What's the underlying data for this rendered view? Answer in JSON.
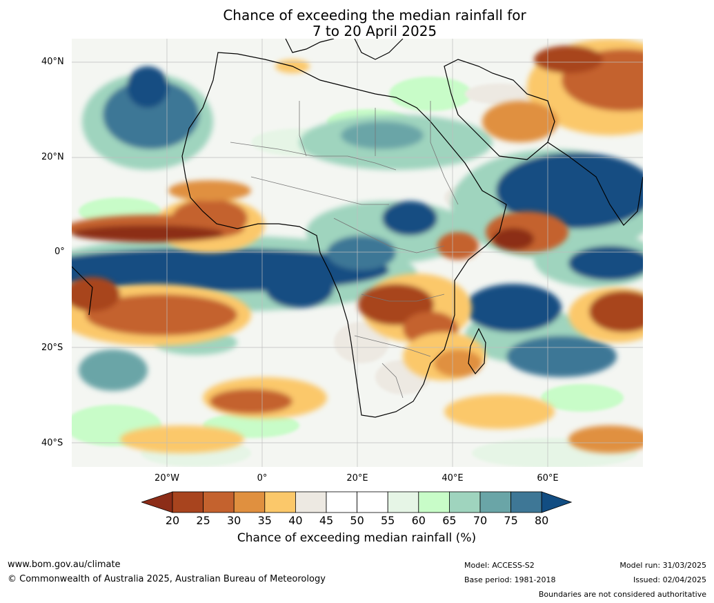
{
  "title": {
    "line1": "Chance of exceeding the median rainfall for",
    "line2": "7 to 20 April 2025"
  },
  "map": {
    "lat_labels": [
      "40°N",
      "20°N",
      "0°",
      "20°S",
      "40°S"
    ],
    "lon_labels": [
      "20°W",
      "0°",
      "20°E",
      "40°E",
      "60°E"
    ]
  },
  "colorbar": {
    "ticks": [
      "20",
      "25",
      "30",
      "35",
      "40",
      "45",
      "50",
      "55",
      "60",
      "65",
      "70",
      "75",
      "80"
    ],
    "colors": [
      "#8c2d18",
      "#a8441e",
      "#c4622e",
      "#e0903f",
      "#fbc86a",
      "#ede9e2",
      "#ffffff",
      "#ffffff",
      "#e6f5e6",
      "#c8fcc8",
      "#9fd4be",
      "#6aa5a7",
      "#3e7796",
      "#124d82"
    ],
    "label": "Chance of exceeding median rainfall (%)"
  },
  "footer": {
    "website": "www.bom.gov.au/climate",
    "copyright": "© Commonwealth of Australia 2025, Australian Bureau of Meteorology",
    "model": "Model: ACCESS-S2",
    "base_period": "Base period: 1981-2018",
    "model_run": "Model run: 31/03/2025",
    "issued": "Issued: 02/04/2025",
    "disclaimer": "Boundaries are not considered authoritative"
  }
}
